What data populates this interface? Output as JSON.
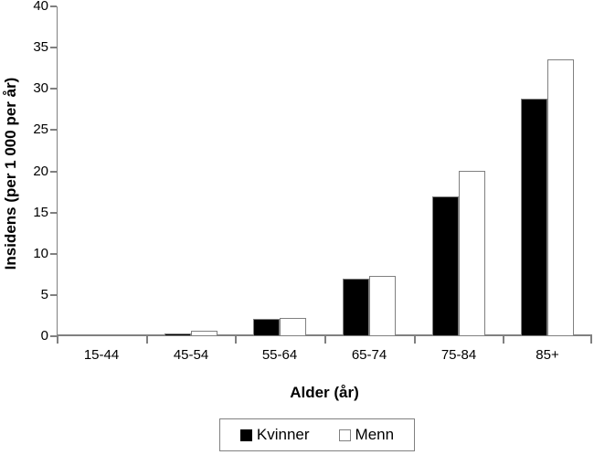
{
  "chart_data": {
    "type": "bar",
    "title": "",
    "xlabel": "Alder (år)",
    "ylabel": "Insidens (per 1 000 per år)",
    "categories": [
      "15-44",
      "45-54",
      "55-64",
      "65-74",
      "75-84",
      "85+"
    ],
    "series": [
      {
        "name": "Kvinner",
        "fill": "#000000",
        "border": "#808080",
        "values": [
          0.1,
          0.3,
          2.1,
          7.0,
          17.0,
          28.8
        ]
      },
      {
        "name": "Menn",
        "fill": "#ffffff",
        "border": "#808080",
        "values": [
          0.1,
          0.7,
          2.2,
          7.3,
          20.0,
          33.6
        ]
      }
    ],
    "ylim": [
      0,
      40
    ],
    "yticks": [
      0,
      5,
      10,
      15,
      20,
      25,
      30,
      35,
      40
    ],
    "grid": false,
    "legend_position": "bottom",
    "axis_color": "#808080",
    "text_color": "#000000",
    "background_color": "#ffffff"
  }
}
